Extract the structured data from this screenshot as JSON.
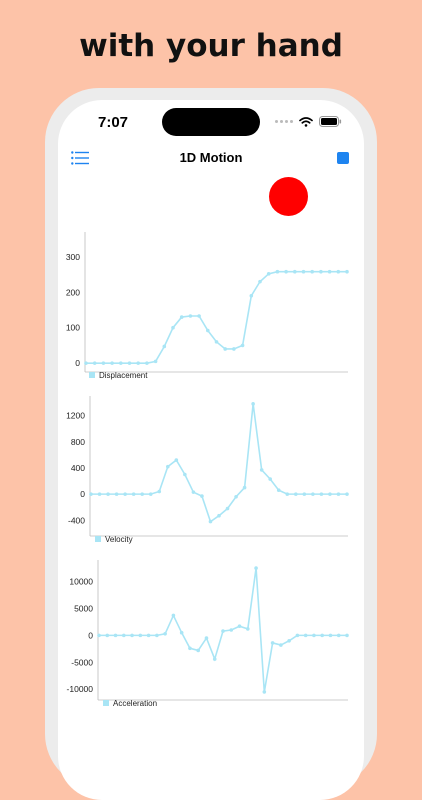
{
  "headline": "with your hand",
  "status": {
    "time": "7:07"
  },
  "nav": {
    "title": "1D Motion",
    "menu_icon": "list-icon",
    "stop_icon": "stop-square-icon"
  },
  "colors": {
    "background": "#FDC3A8",
    "accent": "#1E84F0",
    "ball": "#FF0000",
    "series": "#A9E5F5"
  },
  "chart_data": [
    {
      "type": "line",
      "series": [
        {
          "name": "Displacement",
          "values": [
            0,
            0,
            0,
            0,
            0,
            0,
            0,
            0,
            5,
            47,
            100,
            130,
            133,
            133,
            92,
            60,
            40,
            40,
            50,
            190,
            230,
            252,
            258,
            258,
            258,
            258,
            258,
            258,
            258,
            258,
            258
          ]
        }
      ],
      "yticks": [
        "300",
        "200",
        "100",
        "0"
      ],
      "ylim": [
        -25,
        370
      ]
    },
    {
      "type": "line",
      "series": [
        {
          "name": "Velocity",
          "values": [
            0,
            0,
            0,
            0,
            0,
            0,
            0,
            0,
            40,
            420,
            520,
            300,
            30,
            -30,
            -420,
            -330,
            -220,
            -40,
            100,
            1380,
            370,
            230,
            60,
            0,
            0,
            0,
            0,
            0,
            0,
            0,
            0
          ]
        }
      ],
      "yticks": [
        "1200",
        "800",
        "400",
        "0",
        "-400"
      ],
      "ylim": [
        -640,
        1500
      ]
    },
    {
      "type": "line",
      "series": [
        {
          "name": "Acceleration",
          "values": [
            0,
            0,
            0,
            0,
            0,
            0,
            0,
            0,
            300,
            3700,
            500,
            -2400,
            -2800,
            -500,
            -4400,
            800,
            1000,
            1700,
            1200,
            12500,
            -10500,
            -1400,
            -1800,
            -1000,
            0,
            0,
            0,
            0,
            0,
            0,
            0
          ]
        }
      ],
      "yticks": [
        "10000",
        "5000",
        "0",
        "-5000",
        "-10000"
      ],
      "ylim": [
        -12000,
        14000
      ]
    }
  ]
}
